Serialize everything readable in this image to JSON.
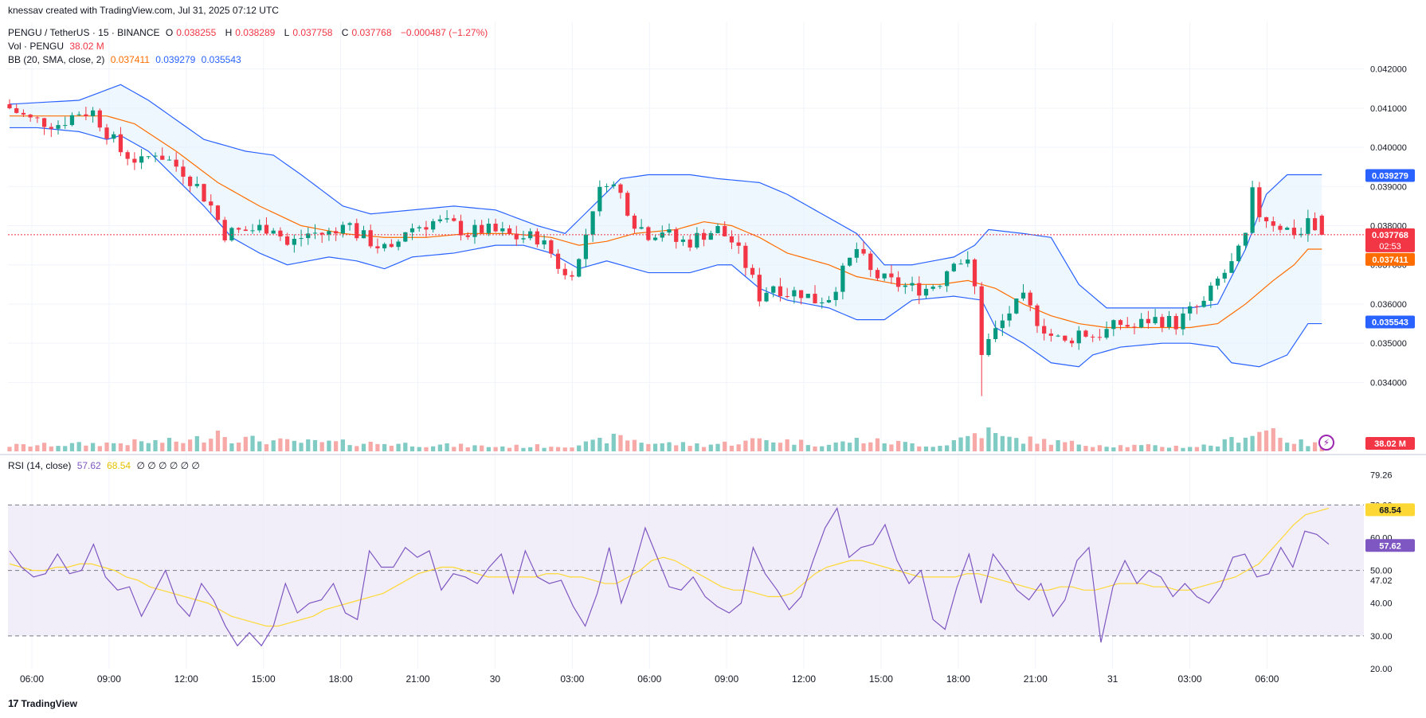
{
  "credit": "knessav created with TradingView.com, Jul 31, 2025 07:12 UTC",
  "brand": "TradingView",
  "header": {
    "symbol": "PENGU / TetherUS · 15 · BINANCE",
    "open_label": "O",
    "open": "0.038255",
    "high_label": "H",
    "high": "0.038289",
    "low_label": "L",
    "low": "0.037758",
    "close_label": "C",
    "close": "0.037768",
    "change": "−0.000487 (−1.27%)",
    "vol_label": "Vol · PENGU",
    "vol_value": "38.02 M",
    "bb_label": "BB (20, SMA, close, 2)",
    "bb_basis": "0.037411",
    "bb_upper": "0.039279",
    "bb_lower": "0.035543",
    "rsi_label": "RSI (14, close)",
    "rsi_value": "57.62",
    "rsi_ma": "68.54",
    "rsi_extra": "∅ ∅ ∅ ∅ ∅ ∅"
  },
  "colors": {
    "up": "#089981",
    "down": "#f23645",
    "bb_band": "#2962ff",
    "bb_basis": "#ff6d00",
    "bb_fill": "#e3f2fd",
    "rsi_line": "#7e57c2",
    "rsi_ma": "#fdd835",
    "rsi_fill": "#ede7f6",
    "vol_up": "#80cbc4",
    "vol_down": "#f7a9a7"
  },
  "chart_data": [
    {
      "type": "candlestick",
      "title": "PENGU / TetherUS · 15 · BINANCE",
      "ylim": [
        0.0335,
        0.0425
      ],
      "y_ticks": [
        "0.042000",
        "0.041000",
        "0.040000",
        "0.039000",
        "0.038000",
        "0.037000",
        "0.036000",
        "0.035000",
        "0.034000"
      ],
      "x_ticks": [
        "06:00",
        "09:00",
        "12:00",
        "15:00",
        "18:00",
        "21:00",
        "30",
        "03:00",
        "06:00",
        "09:00",
        "12:00",
        "15:00",
        "18:00",
        "21:00",
        "31",
        "03:00",
        "06:00"
      ],
      "price_labels": {
        "upper": "0.039279",
        "last": "0.037768",
        "countdown": "02:53",
        "basis": "0.037411",
        "lower": "0.035543",
        "volume": "38.02 M"
      },
      "path_close": [
        [
          0,
          0.0411
        ],
        [
          4,
          0.0407
        ],
        [
          8,
          0.0406
        ],
        [
          11,
          0.0409
        ],
        [
          13,
          0.0409
        ],
        [
          15,
          0.0404
        ],
        [
          17,
          0.0399
        ],
        [
          20,
          0.0396
        ],
        [
          22,
          0.0399
        ],
        [
          26,
          0.0394
        ],
        [
          28,
          0.039
        ],
        [
          30,
          0.0385
        ],
        [
          32,
          0.0378
        ],
        [
          36,
          0.0379
        ],
        [
          39,
          0.038
        ],
        [
          41,
          0.0375
        ],
        [
          44,
          0.0378
        ],
        [
          48,
          0.0378
        ],
        [
          49,
          0.0382
        ],
        [
          51,
          0.0378
        ],
        [
          54,
          0.0375
        ],
        [
          56,
          0.0373
        ],
        [
          58,
          0.0379
        ],
        [
          60,
          0.038
        ],
        [
          62,
          0.0381
        ],
        [
          65,
          0.038
        ],
        [
          67,
          0.0378
        ],
        [
          69,
          0.0379
        ],
        [
          72,
          0.0378
        ],
        [
          74,
          0.0377
        ],
        [
          77,
          0.0377
        ],
        [
          79,
          0.0373
        ],
        [
          81,
          0.0367
        ],
        [
          83,
          0.0371
        ],
        [
          85,
          0.0385
        ],
        [
          87,
          0.0392
        ],
        [
          89,
          0.0388
        ],
        [
          91,
          0.0381
        ],
        [
          93,
          0.0378
        ],
        [
          95,
          0.0379
        ],
        [
          97,
          0.0376
        ],
        [
          99,
          0.0376
        ],
        [
          101,
          0.0378
        ],
        [
          103,
          0.0379
        ],
        [
          105,
          0.0376
        ],
        [
          107,
          0.037
        ],
        [
          109,
          0.0362
        ],
        [
          111,
          0.0365
        ],
        [
          113,
          0.0363
        ],
        [
          115,
          0.0363
        ],
        [
          117,
          0.0361
        ],
        [
          119,
          0.0362
        ],
        [
          121,
          0.0368
        ],
        [
          123,
          0.0374
        ],
        [
          125,
          0.0368
        ],
        [
          127,
          0.0366
        ],
        [
          129,
          0.0365
        ],
        [
          131,
          0.0364
        ],
        [
          133,
          0.0364
        ],
        [
          135,
          0.0366
        ],
        [
          137,
          0.0372
        ],
        [
          139,
          0.037
        ],
        [
          140,
          0.0364
        ],
        [
          141,
          0.0348
        ],
        [
          143,
          0.0353
        ],
        [
          145,
          0.0358
        ],
        [
          147,
          0.0361
        ],
        [
          149,
          0.0356
        ],
        [
          151,
          0.0352
        ],
        [
          153,
          0.035
        ],
        [
          155,
          0.0353
        ],
        [
          157,
          0.0352
        ],
        [
          159,
          0.0353
        ],
        [
          161,
          0.0355
        ],
        [
          163,
          0.0354
        ],
        [
          165,
          0.0356
        ],
        [
          167,
          0.0356
        ],
        [
          169,
          0.0355
        ],
        [
          171,
          0.0358
        ],
        [
          173,
          0.036
        ],
        [
          175,
          0.0366
        ],
        [
          177,
          0.037
        ],
        [
          178,
          0.0373
        ],
        [
          179,
          0.0377
        ],
        [
          180,
          0.0388
        ],
        [
          181,
          0.0383
        ],
        [
          183,
          0.0381
        ],
        [
          185,
          0.0379
        ],
        [
          187,
          0.0378
        ],
        [
          188,
          0.0382
        ],
        [
          189,
          0.0378
        ]
      ],
      "bb_upper_path": [
        [
          0,
          0.0411
        ],
        [
          10,
          0.0412
        ],
        [
          16,
          0.0416
        ],
        [
          20,
          0.0412
        ],
        [
          28,
          0.0402
        ],
        [
          34,
          0.0399
        ],
        [
          38,
          0.0398
        ],
        [
          42,
          0.0393
        ],
        [
          48,
          0.0385
        ],
        [
          52,
          0.0383
        ],
        [
          58,
          0.0384
        ],
        [
          64,
          0.0385
        ],
        [
          70,
          0.0384
        ],
        [
          76,
          0.038
        ],
        [
          80,
          0.0378
        ],
        [
          84,
          0.0385
        ],
        [
          88,
          0.0392
        ],
        [
          92,
          0.0393
        ],
        [
          98,
          0.0393
        ],
        [
          102,
          0.0392
        ],
        [
          108,
          0.0391
        ],
        [
          112,
          0.0388
        ],
        [
          118,
          0.0382
        ],
        [
          122,
          0.0378
        ],
        [
          126,
          0.037
        ],
        [
          130,
          0.037
        ],
        [
          136,
          0.0372
        ],
        [
          139,
          0.0375
        ],
        [
          141,
          0.0379
        ],
        [
          146,
          0.0378
        ],
        [
          150,
          0.0377
        ],
        [
          154,
          0.0365
        ],
        [
          158,
          0.0359
        ],
        [
          164,
          0.0359
        ],
        [
          170,
          0.0359
        ],
        [
          174,
          0.036
        ],
        [
          178,
          0.0374
        ],
        [
          181,
          0.0388
        ],
        [
          184,
          0.0393
        ],
        [
          187,
          0.0393
        ]
      ],
      "bb_lower_path": [
        [
          0,
          0.0405
        ],
        [
          4,
          0.0405
        ],
        [
          10,
          0.0404
        ],
        [
          14,
          0.0402
        ],
        [
          16,
          0.0403
        ],
        [
          20,
          0.0399
        ],
        [
          28,
          0.0385
        ],
        [
          32,
          0.0377
        ],
        [
          36,
          0.0373
        ],
        [
          40,
          0.037
        ],
        [
          46,
          0.0372
        ],
        [
          50,
          0.0371
        ],
        [
          54,
          0.0369
        ],
        [
          58,
          0.0372
        ],
        [
          64,
          0.0373
        ],
        [
          70,
          0.0375
        ],
        [
          74,
          0.0375
        ],
        [
          78,
          0.0373
        ],
        [
          82,
          0.0369
        ],
        [
          86,
          0.0371
        ],
        [
          92,
          0.0368
        ],
        [
          98,
          0.0368
        ],
        [
          102,
          0.037
        ],
        [
          104,
          0.037
        ],
        [
          108,
          0.0364
        ],
        [
          112,
          0.0361
        ],
        [
          118,
          0.0359
        ],
        [
          122,
          0.0356
        ],
        [
          126,
          0.0356
        ],
        [
          130,
          0.0361
        ],
        [
          136,
          0.0362
        ],
        [
          140,
          0.0361
        ],
        [
          142,
          0.0354
        ],
        [
          146,
          0.035
        ],
        [
          150,
          0.0345
        ],
        [
          154,
          0.0344
        ],
        [
          156,
          0.0347
        ],
        [
          160,
          0.0349
        ],
        [
          166,
          0.035
        ],
        [
          170,
          0.035
        ],
        [
          174,
          0.0349
        ],
        [
          176,
          0.0345
        ],
        [
          180,
          0.0344
        ],
        [
          184,
          0.0347
        ],
        [
          187,
          0.0355
        ]
      ],
      "bb_basis_path": [
        [
          0,
          0.0408
        ],
        [
          8,
          0.0408
        ],
        [
          14,
          0.0408
        ],
        [
          18,
          0.0406
        ],
        [
          24,
          0.0399
        ],
        [
          30,
          0.0391
        ],
        [
          36,
          0.0385
        ],
        [
          42,
          0.038
        ],
        [
          48,
          0.0378
        ],
        [
          54,
          0.0377
        ],
        [
          60,
          0.0377
        ],
        [
          66,
          0.0378
        ],
        [
          72,
          0.0378
        ],
        [
          78,
          0.0377
        ],
        [
          82,
          0.0375
        ],
        [
          86,
          0.0376
        ],
        [
          90,
          0.0378
        ],
        [
          96,
          0.0379
        ],
        [
          100,
          0.0381
        ],
        [
          104,
          0.038
        ],
        [
          108,
          0.0377
        ],
        [
          112,
          0.0373
        ],
        [
          118,
          0.037
        ],
        [
          122,
          0.0367
        ],
        [
          128,
          0.0365
        ],
        [
          134,
          0.0365
        ],
        [
          138,
          0.0366
        ],
        [
          142,
          0.0364
        ],
        [
          146,
          0.036
        ],
        [
          150,
          0.0357
        ],
        [
          154,
          0.0355
        ],
        [
          158,
          0.0354
        ],
        [
          164,
          0.0354
        ],
        [
          170,
          0.0354
        ],
        [
          174,
          0.0355
        ],
        [
          178,
          0.036
        ],
        [
          182,
          0.0366
        ],
        [
          185,
          0.037
        ],
        [
          187,
          0.0374
        ]
      ],
      "volume_ylim": [
        0,
        80
      ],
      "volume_path": [
        [
          0,
          12
        ],
        [
          10,
          15
        ],
        [
          20,
          20
        ],
        [
          26,
          22
        ],
        [
          28,
          30
        ],
        [
          30,
          45
        ],
        [
          32,
          28
        ],
        [
          40,
          20
        ],
        [
          50,
          18
        ],
        [
          56,
          16
        ],
        [
          60,
          14
        ],
        [
          70,
          10
        ],
        [
          80,
          12
        ],
        [
          84,
          18
        ],
        [
          86,
          26
        ],
        [
          88,
          30
        ],
        [
          92,
          18
        ],
        [
          100,
          14
        ],
        [
          106,
          20
        ],
        [
          108,
          26
        ],
        [
          112,
          22
        ],
        [
          118,
          14
        ],
        [
          122,
          24
        ],
        [
          126,
          20
        ],
        [
          134,
          12
        ],
        [
          139,
          38
        ],
        [
          141,
          42
        ],
        [
          143,
          28
        ],
        [
          147,
          24
        ],
        [
          152,
          18
        ],
        [
          160,
          12
        ],
        [
          170,
          10
        ],
        [
          174,
          14
        ],
        [
          178,
          35
        ],
        [
          180,
          42
        ],
        [
          182,
          48
        ],
        [
          184,
          24
        ],
        [
          187,
          16
        ],
        [
          189,
          14
        ]
      ]
    },
    {
      "type": "line",
      "title": "RSI (14, close)",
      "ylim": [
        20,
        82
      ],
      "y_ticks": [
        "79.26",
        "70.00",
        "60.00",
        "50.00",
        "47.02",
        "40.00",
        "30.00",
        "20.00"
      ],
      "bands": {
        "upper": 70,
        "middle": 50,
        "lower": 30
      },
      "last_labels": {
        "ma": "68.54",
        "rsi": "57.62"
      },
      "series": [
        {
          "role": "rsi",
          "values": [
            56,
            51,
            48,
            49,
            55,
            49,
            50,
            58,
            48,
            44,
            45,
            36,
            43,
            50,
            40,
            36,
            46,
            41,
            33,
            27,
            31,
            27,
            33,
            46,
            37,
            40,
            41,
            46,
            37,
            35,
            56,
            51,
            51,
            57,
            54,
            56,
            44,
            49,
            48,
            46,
            51,
            55,
            43,
            56,
            48,
            46,
            47,
            39,
            33,
            43,
            57,
            40,
            50,
            63,
            54,
            45,
            44,
            48,
            42,
            39,
            37,
            40,
            57,
            49,
            44,
            38,
            42,
            53,
            63,
            69,
            54,
            57,
            58,
            64,
            53,
            46,
            50,
            35,
            32,
            45,
            55,
            40,
            55,
            50,
            44,
            41,
            46,
            36,
            41,
            53,
            57,
            28,
            45,
            53,
            46,
            50,
            48,
            42,
            46,
            42,
            40,
            45,
            54,
            55,
            48,
            49,
            57,
            51,
            62,
            61,
            58
          ]
        },
        {
          "role": "rsi_ma",
          "values": [
            52,
            51,
            50,
            50,
            51,
            51,
            52,
            52,
            51,
            50,
            48,
            47,
            45,
            44,
            43,
            42,
            41,
            40,
            38,
            36,
            35,
            34,
            33,
            33,
            34,
            35,
            36,
            38,
            39,
            40,
            41,
            42,
            43,
            45,
            47,
            49,
            50,
            51,
            51,
            50,
            49,
            48,
            48,
            48,
            48,
            48,
            49,
            49,
            48,
            48,
            47,
            46,
            46,
            48,
            50,
            53,
            54,
            53,
            51,
            49,
            47,
            45,
            44,
            44,
            43,
            42,
            42,
            43,
            46,
            49,
            51,
            52,
            53,
            53,
            52,
            51,
            50,
            49,
            48,
            48,
            48,
            48,
            49,
            49,
            48,
            47,
            46,
            45,
            44,
            44,
            45,
            45,
            44,
            44,
            45,
            46,
            46,
            46,
            45,
            45,
            44,
            44,
            45,
            46,
            47,
            48,
            50,
            52,
            56,
            60,
            64,
            67,
            68,
            69
          ]
        }
      ]
    }
  ]
}
